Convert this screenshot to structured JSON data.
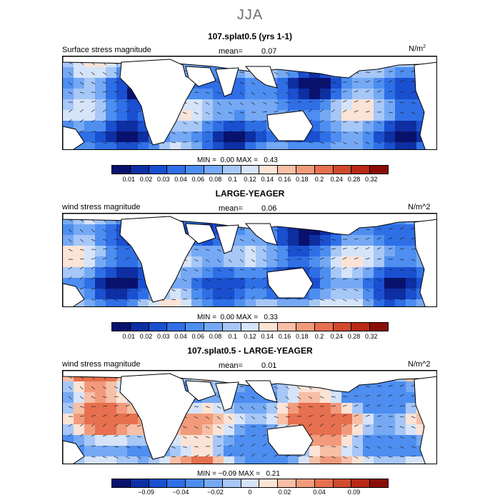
{
  "figure": {
    "title": "JJA"
  },
  "panels": [
    {
      "title": "107.splat0.5 (yrs 1-1)",
      "variable": "Surface stress magnitude",
      "mean_label": "mean=",
      "mean_value": "0.07",
      "units": "N/m",
      "units_sup": "2",
      "min_label": "MIN =",
      "min_value": "0.00",
      "max_label": "MAX =",
      "max_value": "0.43",
      "style": "abs",
      "colorbar_ticks": [
        "0.01",
        "0.02",
        "0.03",
        "0.04",
        "0.06",
        "0.08",
        "0.1",
        "0.12",
        "0.14",
        "0.16",
        "0.18",
        "0.2",
        "0.24",
        "0.28",
        "0.32"
      ]
    },
    {
      "title": "LARGE-YEAGER",
      "variable": "wind stress magnitude",
      "mean_label": "mean=",
      "mean_value": "0.06",
      "units": "N/m^2",
      "units_sup": "",
      "min_label": "MIN =",
      "min_value": "0.00",
      "max_label": "MAX =",
      "max_value": "0.33",
      "style": "abs",
      "colorbar_ticks": [
        "0.01",
        "0.02",
        "0.03",
        "0.04",
        "0.06",
        "0.08",
        "0.1",
        "0.12",
        "0.14",
        "0.16",
        "0.18",
        "0.2",
        "0.24",
        "0.28",
        "0.32"
      ]
    },
    {
      "title": "107.splat0.5 - LARGE-YEAGER",
      "variable": "wind stress magnitude",
      "mean_label": "mean=",
      "mean_value": "0.01",
      "units": "N/m^2",
      "units_sup": "",
      "min_label": "MIN =",
      "min_value": "−0.09",
      "max_label": "MAX =",
      "max_value": "0.21",
      "style": "diff",
      "colorbar_ticks": [
        "−0.09",
        "−0.04",
        "−0.02",
        "0",
        "0.02",
        "0.04",
        "0.09"
      ]
    }
  ],
  "colors": {
    "colorbar_abs": [
      "#08126e",
      "#0d2fa3",
      "#1a4fd0",
      "#2f6fe6",
      "#4d8ef0",
      "#76a9f4",
      "#a7c7f7",
      "#d6e4f9",
      "#fbe3d6",
      "#f7bfa6",
      "#f19b7c",
      "#e6704f",
      "#d24a2e",
      "#b82a16",
      "#8a0e07"
    ],
    "colorbar_diff": [
      "#08126e",
      "#0d2fa3",
      "#1a4fd0",
      "#2f6fe6",
      "#4d8ef0",
      "#76a9f4",
      "#a7c7f7",
      "#d6e4f9",
      "#fbe3d6",
      "#f7bfa6",
      "#f19b7c",
      "#e6704f",
      "#d24a2e",
      "#b82a16",
      "#8a0e07"
    ],
    "land": "#ffffff",
    "coast": "#000000"
  }
}
